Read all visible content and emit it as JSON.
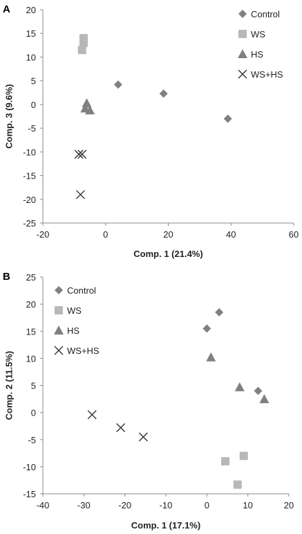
{
  "chart_data": [
    {
      "type": "scatter",
      "panel_label": "A",
      "xlabel": "Comp. 1 (21.4%)",
      "ylabel": "Comp. 3 (9.6%)",
      "xlim": [
        -20,
        60
      ],
      "ylim": [
        -25,
        20
      ],
      "x_ticks": [
        -20,
        0,
        20,
        40,
        60
      ],
      "y_ticks": [
        -25,
        -20,
        -15,
        -10,
        -5,
        0,
        5,
        10,
        15,
        20
      ],
      "grid": false,
      "legend_position": "top-right",
      "series": [
        {
          "name": "Control",
          "marker": "diamond",
          "color": "#808080",
          "points": [
            [
              4,
              4.2
            ],
            [
              18.5,
              2.3
            ],
            [
              39,
              -3
            ]
          ]
        },
        {
          "name": "WS",
          "marker": "square",
          "color": "#b8b8b8",
          "points": [
            [
              -7,
              14
            ],
            [
              -7,
              13
            ],
            [
              -7.5,
              11.5
            ]
          ]
        },
        {
          "name": "HS",
          "marker": "triangle",
          "color": "#808080",
          "points": [
            [
              -6,
              0.3
            ],
            [
              -6.5,
              -0.8
            ],
            [
              -5,
              -1.2
            ]
          ]
        },
        {
          "name": "WS+HS",
          "marker": "cross",
          "color": "#303030",
          "points": [
            [
              -8.5,
              -10.5
            ],
            [
              -7.5,
              -10.5
            ],
            [
              -8,
              -19
            ]
          ]
        }
      ]
    },
    {
      "type": "scatter",
      "panel_label": "B",
      "xlabel": "Comp. 1 (17.1%)",
      "ylabel": "Comp. 2 (11.5%)",
      "xlim": [
        -40,
        20
      ],
      "ylim": [
        -15,
        25
      ],
      "x_ticks": [
        -40,
        -30,
        -20,
        -10,
        0,
        10,
        20
      ],
      "y_ticks": [
        -15,
        -10,
        -5,
        0,
        5,
        10,
        15,
        20,
        25
      ],
      "grid": false,
      "legend_position": "top-left",
      "series": [
        {
          "name": "Control",
          "marker": "diamond",
          "color": "#808080",
          "points": [
            [
              0,
              15.5
            ],
            [
              3,
              18.5
            ],
            [
              12.5,
              4
            ]
          ]
        },
        {
          "name": "WS",
          "marker": "square",
          "color": "#b8b8b8",
          "points": [
            [
              4.5,
              -9
            ],
            [
              9,
              -8
            ],
            [
              7.5,
              -13.3
            ]
          ]
        },
        {
          "name": "HS",
          "marker": "triangle",
          "color": "#808080",
          "points": [
            [
              1,
              10.2
            ],
            [
              8,
              4.7
            ],
            [
              14,
              2.5
            ]
          ]
        },
        {
          "name": "WS+HS",
          "marker": "cross",
          "color": "#303030",
          "points": [
            [
              -28,
              -0.4
            ],
            [
              -21,
              -2.8
            ],
            [
              -15.5,
              -4.5
            ]
          ]
        }
      ]
    }
  ]
}
